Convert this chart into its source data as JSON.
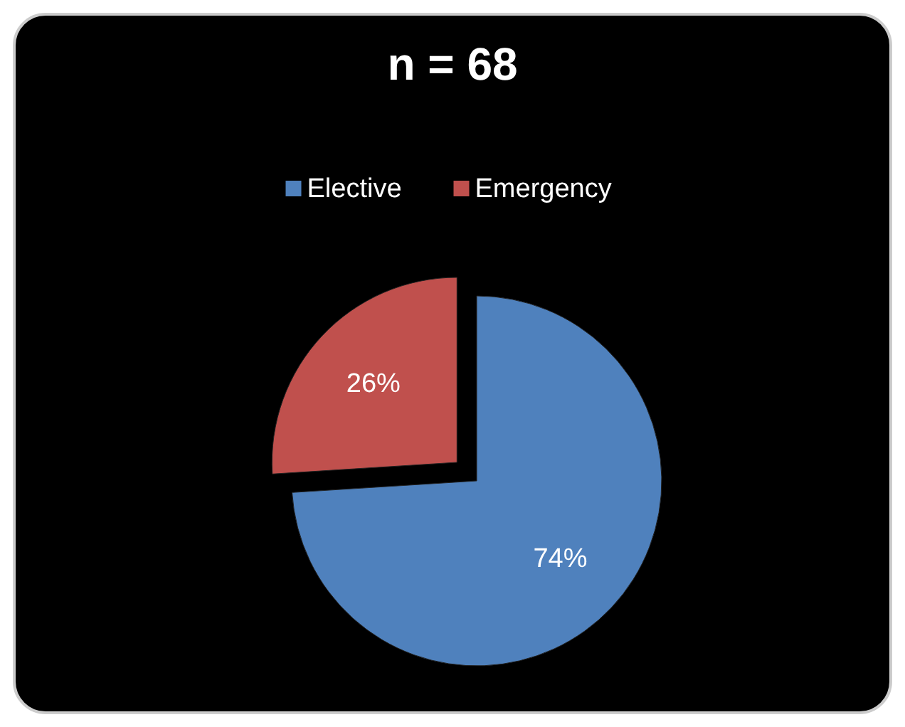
{
  "chart_data": {
    "type": "pie",
    "title": "n = 68",
    "categories": [
      "Elective",
      "Emergency"
    ],
    "values": [
      74,
      26
    ],
    "colors": [
      "#4f81bd",
      "#c0504d"
    ],
    "value_labels": [
      "74%",
      "26%"
    ],
    "legend": "top"
  }
}
